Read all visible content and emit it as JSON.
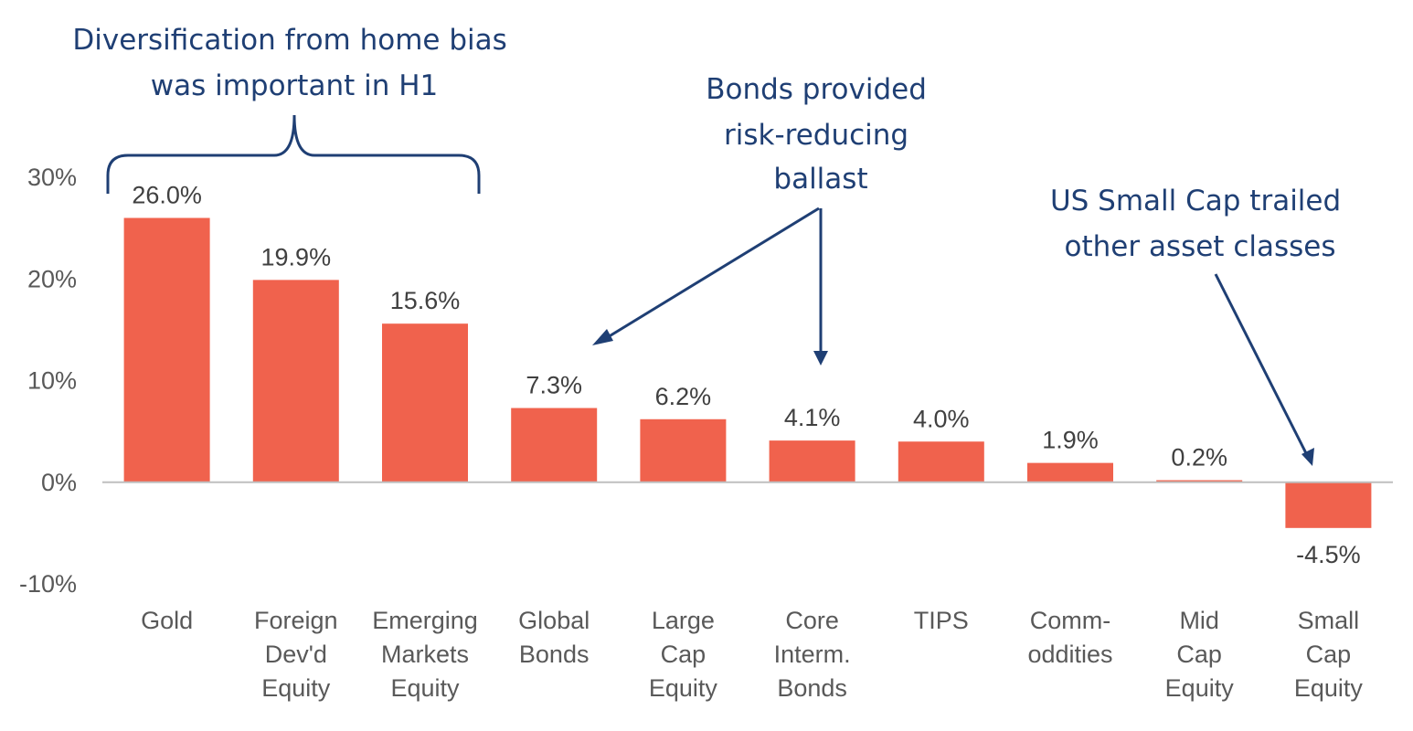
{
  "colors": {
    "bar": "#f0624d",
    "annotation": "#1f3f74",
    "axis": "#bfbfbf"
  },
  "chart_data": {
    "type": "bar",
    "categories": [
      [
        "Gold"
      ],
      [
        "Foreign",
        "Dev'd",
        "Equity"
      ],
      [
        "Emerging",
        "Markets",
        "Equity"
      ],
      [
        "Global",
        "Bonds"
      ],
      [
        "Large",
        "Cap",
        "Equity"
      ],
      [
        "Core",
        "Interm.",
        "Bonds"
      ],
      [
        "TIPS"
      ],
      [
        "Comm-",
        "oddities"
      ],
      [
        "Mid",
        "Cap",
        "Equity"
      ],
      [
        "Small",
        "Cap",
        "Equity"
      ]
    ],
    "values": [
      26.0,
      19.9,
      15.6,
      7.3,
      6.2,
      4.1,
      4.0,
      1.9,
      0.2,
      -4.5
    ],
    "data_labels": [
      "26.0%",
      "19.9%",
      "15.6%",
      "7.3%",
      "6.2%",
      "4.1%",
      "4.0%",
      "1.9%",
      "0.2%",
      "-4.5%"
    ],
    "ylim": [
      -10,
      30
    ],
    "yticks": [
      30,
      20,
      10,
      0,
      -10
    ],
    "ytick_labels": [
      "30%",
      "20%",
      "10%",
      "0%",
      "-10%"
    ],
    "grid": false,
    "annotations": [
      {
        "lines": [
          "Diversification from home bias",
          "was important in H1"
        ]
      },
      {
        "lines": [
          "Bonds provided",
          "risk-reducing",
          "ballast"
        ]
      },
      {
        "lines": [
          "US Small Cap trailed",
          "other asset classes"
        ]
      }
    ]
  }
}
